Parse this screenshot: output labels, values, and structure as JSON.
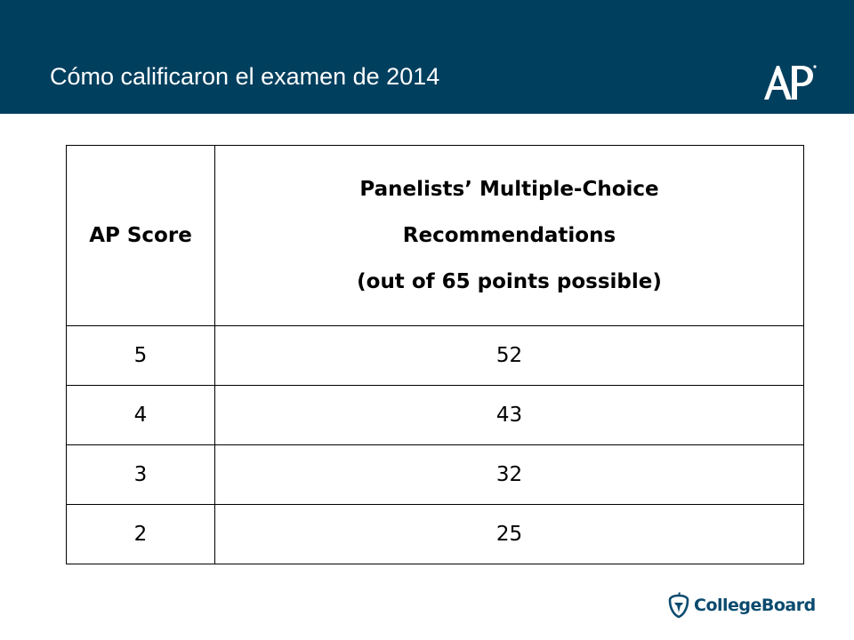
{
  "header": {
    "title": "Cómo calificaron el examen de 2014",
    "logo_text": "AP",
    "background_color": "#003f5e"
  },
  "table": {
    "headers": [
      {
        "lines": [
          "AP Score"
        ]
      },
      {
        "lines": [
          "Panelists’ Multiple-Choice",
          "Recommendations",
          "(out of 65 points possible)"
        ]
      }
    ],
    "rows": [
      {
        "score": "5",
        "recommendation": "52"
      },
      {
        "score": "4",
        "recommendation": "43"
      },
      {
        "score": "3",
        "recommendation": "32"
      },
      {
        "score": "2",
        "recommendation": "25"
      }
    ]
  },
  "footer": {
    "brand": "CollegeBoard",
    "brand_color": "#0a4a6e",
    "icon": "acorn-icon"
  }
}
